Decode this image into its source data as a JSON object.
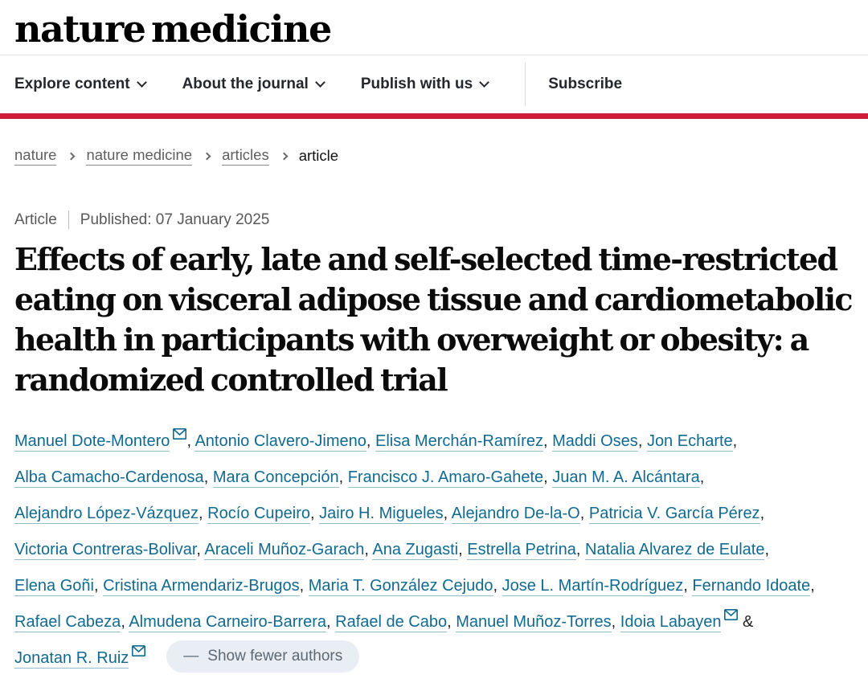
{
  "header": {
    "logo": "nature medicine",
    "nav": [
      {
        "label": "Explore content",
        "has_dropdown": true
      },
      {
        "label": "About the journal",
        "has_dropdown": true
      },
      {
        "label": "Publish with us",
        "has_dropdown": true
      },
      {
        "label": "Subscribe",
        "has_dropdown": false
      }
    ]
  },
  "breadcrumb": {
    "items": [
      {
        "label": "nature",
        "link": true
      },
      {
        "label": "nature medicine",
        "link": true
      },
      {
        "label": "articles",
        "link": true
      },
      {
        "label": "article",
        "link": false
      }
    ]
  },
  "article": {
    "type_label": "Article",
    "published_label": "Published: 07 January 2025",
    "title": "Effects of early, late and self-selected time-restricted eating on visceral adipose tissue and cardiometabolic health in participants with overweight or obesity: a randomized controlled trial"
  },
  "authors": {
    "separator": ", ",
    "ampersand": " & ",
    "list": [
      {
        "name": "Manuel Dote-Montero",
        "email": true
      },
      {
        "name": "Antonio Clavero-Jimeno",
        "email": false
      },
      {
        "name": "Elisa Merchán-Ramírez",
        "email": false
      },
      {
        "name": "Maddi Oses",
        "email": false
      },
      {
        "name": "Jon Echarte",
        "email": false
      },
      {
        "name": "Alba Camacho-Cardenosa",
        "email": false
      },
      {
        "name": "Mara Concepción",
        "email": false
      },
      {
        "name": "Francisco J. Amaro-Gahete",
        "email": false
      },
      {
        "name": "Juan M. A. Alcántara",
        "email": false
      },
      {
        "name": "Alejandro López-Vázquez",
        "email": false
      },
      {
        "name": "Rocío Cupeiro",
        "email": false
      },
      {
        "name": "Jairo H. Migueles",
        "email": false
      },
      {
        "name": "Alejandro De-la-O",
        "email": false
      },
      {
        "name": "Patricia V. García Pérez",
        "email": false
      },
      {
        "name": "Victoria Contreras-Bolivar",
        "email": false
      },
      {
        "name": "Araceli Muñoz-Garach",
        "email": false
      },
      {
        "name": "Ana Zugasti",
        "email": false
      },
      {
        "name": "Estrella Petrina",
        "email": false
      },
      {
        "name": "Natalia Alvarez de Eulate",
        "email": false
      },
      {
        "name": "Elena Goñi",
        "email": false
      },
      {
        "name": "Cristina Armendariz-Brugos",
        "email": false
      },
      {
        "name": "Maria T. González Cejudo",
        "email": false
      },
      {
        "name": "Jose L. Martín-Rodríguez",
        "email": false
      },
      {
        "name": "Fernando Idoate",
        "email": false
      },
      {
        "name": "Rafael Cabeza",
        "email": false
      },
      {
        "name": "Almudena Carneiro-Barrera",
        "email": false
      },
      {
        "name": "Rafael de Cabo",
        "email": false
      },
      {
        "name": "Manuel Muñoz-Torres",
        "email": false
      },
      {
        "name": "Idoia Labayen",
        "email": true
      },
      {
        "name": "Jonatan R. Ruiz",
        "email": true
      }
    ],
    "show_fewer": {
      "icon": "—",
      "label": "Show fewer authors"
    }
  },
  "colors": {
    "accent_red": "#d01f3a",
    "link_teal": "#116a90",
    "pill_bg": "#e9eef4"
  }
}
